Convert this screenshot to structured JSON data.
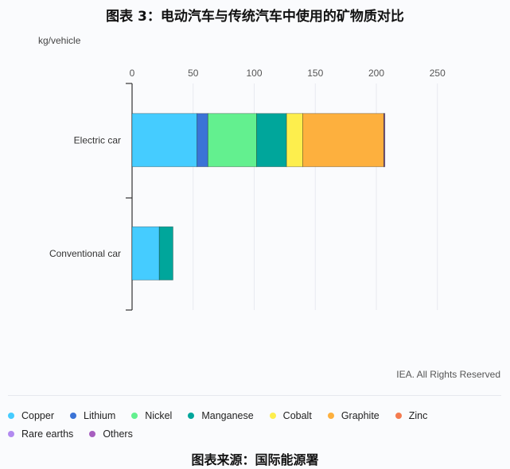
{
  "chart_data": {
    "type": "bar",
    "orientation": "horizontal",
    "stacked": true,
    "title": "图表 3：电动汽车与传统汽车中使用的矿物质对比",
    "unit_label": "kg/vehicle",
    "categories": [
      "Electric car",
      "Conventional car"
    ],
    "xlim": [
      0,
      250
    ],
    "xticks": [
      0,
      50,
      100,
      150,
      200,
      250
    ],
    "grid": true,
    "legend_position": "bottom",
    "series": [
      {
        "name": "Copper",
        "color": "#45ccff",
        "values": [
          53.2,
          22.3
        ]
      },
      {
        "name": "Lithium",
        "color": "#3b73d6",
        "values": [
          8.9,
          0
        ]
      },
      {
        "name": "Nickel",
        "color": "#63f08f",
        "values": [
          39.9,
          0
        ]
      },
      {
        "name": "Manganese",
        "color": "#00a69b",
        "values": [
          24.5,
          11.2
        ]
      },
      {
        "name": "Cobalt",
        "color": "#fdee4d",
        "values": [
          13.3,
          0
        ]
      },
      {
        "name": "Graphite",
        "color": "#fdb03e",
        "values": [
          66.3,
          0
        ]
      },
      {
        "name": "Zinc",
        "color": "#f47b4f",
        "values": [
          0.1,
          0
        ]
      },
      {
        "name": "Rare earths",
        "color": "#b28af0",
        "values": [
          0.5,
          0
        ]
      },
      {
        "name": "Others",
        "color": "#a75fbf",
        "values": [
          0.3,
          0
        ]
      }
    ],
    "note": "IEA. All Rights Reserved"
  },
  "footer": "图表来源：国际能源署"
}
